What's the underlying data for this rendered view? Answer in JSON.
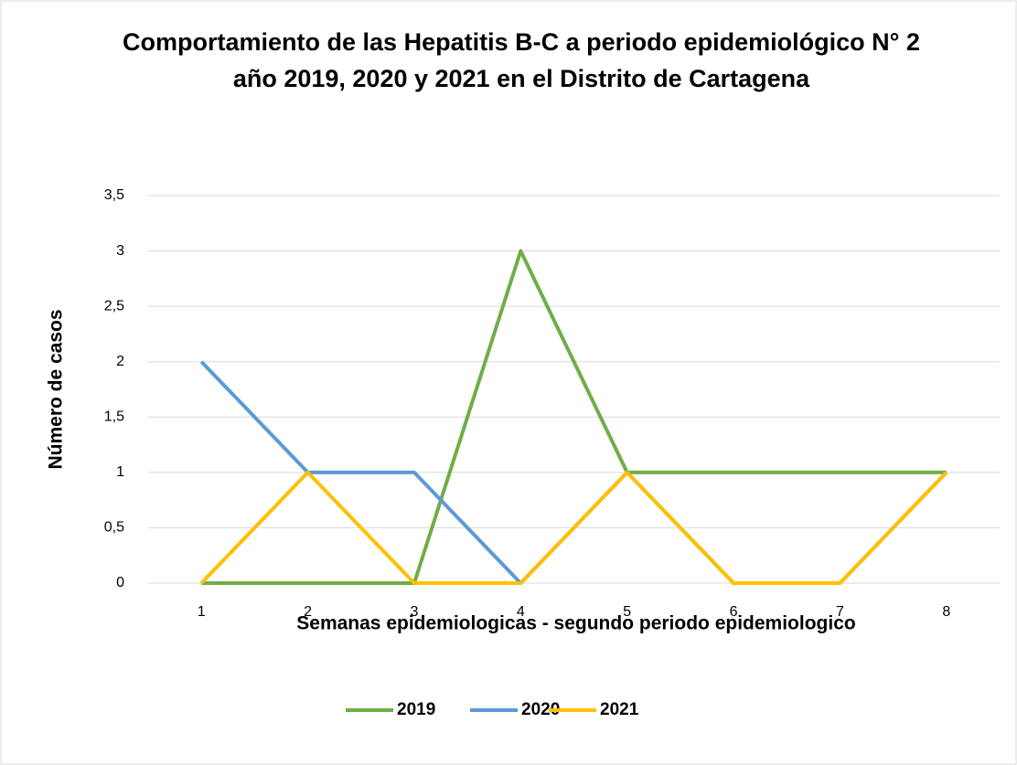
{
  "chart_data": {
    "type": "line",
    "title": "Comportamiento de las Hepatitis B-C a periodo epidemiológico N° 2 año 2019, 2020 y 2021 en el Distrito de Cartagena",
    "xlabel": "Semanas epidemiologicas - segundo periodo epidemiologico",
    "ylabel": "Número de casos",
    "categories": [
      "1",
      "2",
      "3",
      "4",
      "5",
      "6",
      "7",
      "8"
    ],
    "series": [
      {
        "name": "2019",
        "color": "#70ad47",
        "values": [
          0,
          0,
          0,
          3,
          1,
          1,
          1,
          1
        ]
      },
      {
        "name": "2020",
        "color": "#5b9bd5",
        "values": [
          2,
          1,
          1,
          0,
          1,
          0,
          0,
          1
        ]
      },
      {
        "name": "2021",
        "color": "#ffc000",
        "values": [
          0,
          1,
          0,
          0,
          1,
          0,
          0,
          1
        ]
      }
    ],
    "ylim": [
      0,
      3.5
    ],
    "yticks": [
      0,
      {
        "value": 0.5,
        "label": "0,5"
      },
      1,
      {
        "value": 1.5,
        "label": "1,5"
      },
      2,
      {
        "value": 2.5,
        "label": "2,5"
      },
      3,
      {
        "value": 3.5,
        "label": "3,5"
      }
    ],
    "grid": true,
    "legend": "bottom"
  }
}
